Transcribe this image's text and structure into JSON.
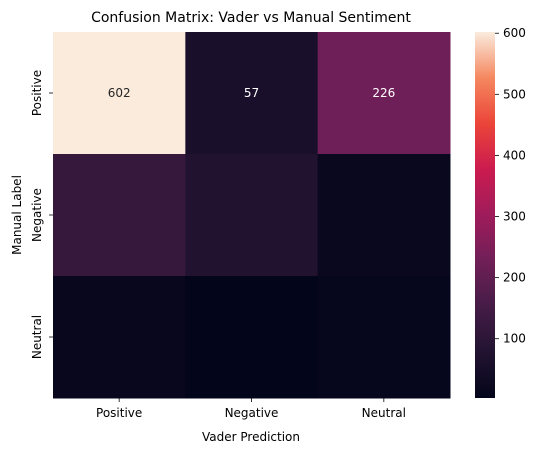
{
  "chart_data": {
    "type": "heatmap",
    "title": "Confusion Matrix: Vader vs Manual Sentiment",
    "xlabel": "Vader Prediction",
    "ylabel": "Manual Label",
    "x_categories": [
      "Positive",
      "Negative",
      "Neutral"
    ],
    "y_categories": [
      "Positive",
      "Negative",
      "Neutral"
    ],
    "values": [
      [
        602,
        57,
        226
      ],
      [
        120,
        75,
        20
      ],
      [
        15,
        3,
        10
      ]
    ],
    "annotations": [
      [
        "602",
        "57",
        "226"
      ],
      [
        "",
        "",
        ""
      ],
      [
        "",
        "",
        ""
      ]
    ],
    "colorbar": {
      "min": 3,
      "max": 602,
      "ticks": [
        "100",
        "200",
        "300",
        "400",
        "500",
        "600"
      ],
      "tick_values": [
        100,
        200,
        300,
        400,
        500,
        600
      ],
      "colormap": "rocket"
    },
    "grid": false
  }
}
